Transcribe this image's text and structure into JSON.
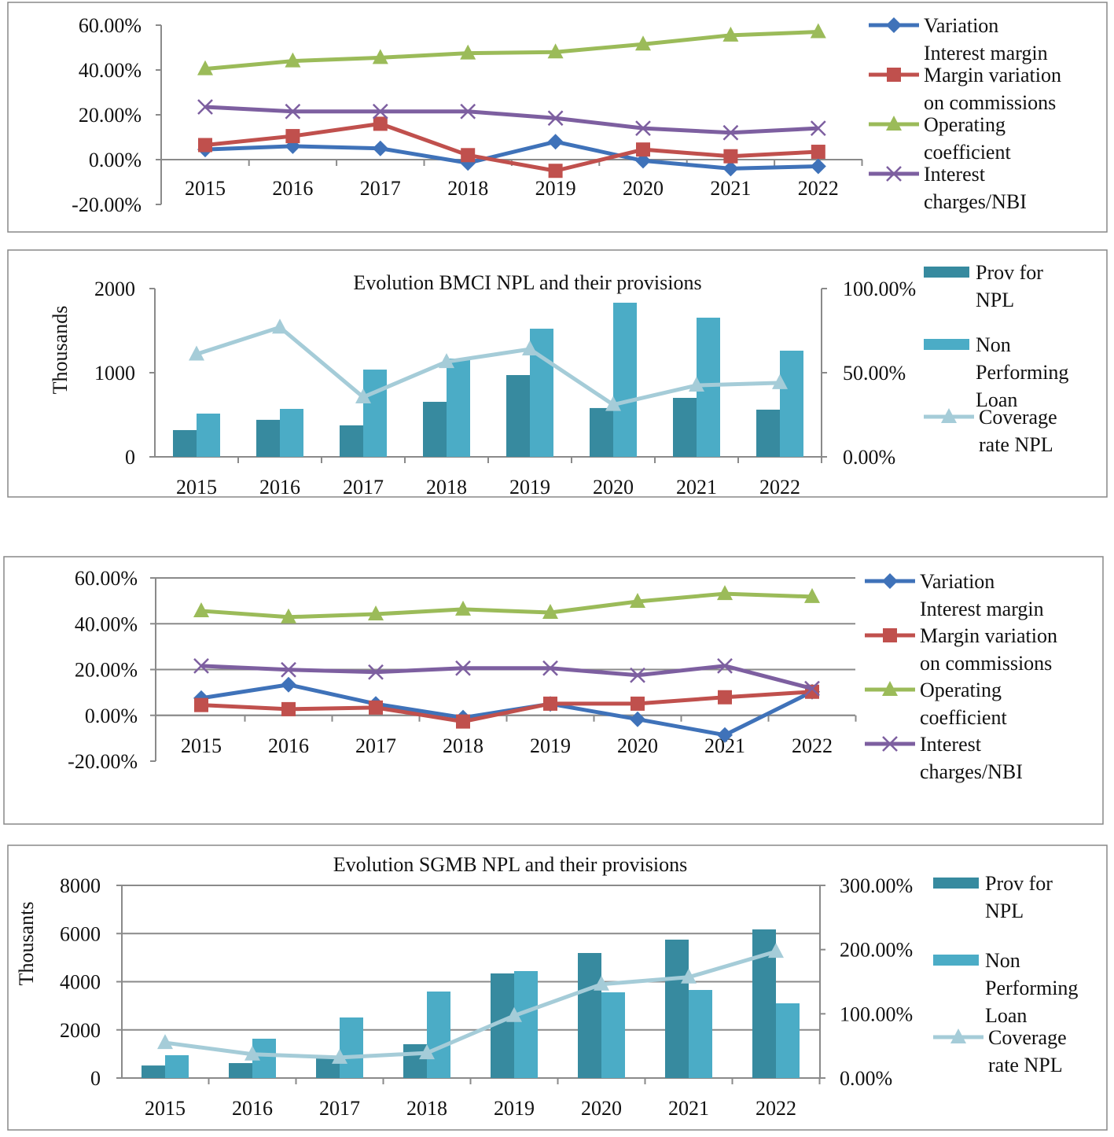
{
  "chart_data": [
    {
      "type": "line",
      "title": "",
      "categories": [
        "2015",
        "2016",
        "2017",
        "2018",
        "2019",
        "2020",
        "2021",
        "2022"
      ],
      "ylim": [
        -0.2,
        0.6
      ],
      "yticks": [
        "60.00%",
        "40.00%",
        "20.00%",
        "0.00%",
        "-20.00%"
      ],
      "ytick_values": [
        0.6,
        0.4,
        0.2,
        0,
        -0.2
      ],
      "grid": false,
      "legend": "right",
      "series": [
        {
          "name": "Variation Interest margin",
          "marker": "diamond",
          "color": "#3F72B9",
          "values": [
            0.045,
            0.06,
            0.05,
            -0.015,
            0.08,
            -0.005,
            -0.04,
            -0.03
          ]
        },
        {
          "name": "Margin variation on commissions",
          "marker": "square",
          "color": "#C0504D",
          "values": [
            0.065,
            0.105,
            0.16,
            0.02,
            -0.05,
            0.045,
            0.015,
            0.035
          ]
        },
        {
          "name": "Operating coefficient",
          "marker": "triangle",
          "color": "#9BBB59",
          "values": [
            0.405,
            0.44,
            0.455,
            0.475,
            0.48,
            0.515,
            0.555,
            0.57
          ]
        },
        {
          "name": "Interest charges/NBI",
          "marker": "x",
          "color": "#7D5FA0",
          "values": [
            0.235,
            0.215,
            0.215,
            0.215,
            0.185,
            0.14,
            0.12,
            0.14
          ]
        }
      ]
    },
    {
      "type": "bar",
      "title": "Evolution BMCI NPL and their provisions",
      "ylabel": "Thousands",
      "categories": [
        "2015",
        "2016",
        "2017",
        "2018",
        "2019",
        "2020",
        "2021",
        "2022"
      ],
      "ylim": [
        0,
        2000
      ],
      "yticks": [
        "2000",
        "1000",
        "0"
      ],
      "ytick_values": [
        2000,
        1000,
        0
      ],
      "y2lim": [
        0,
        1
      ],
      "y2ticks": [
        "100.00%",
        "50.00%",
        "0.00%"
      ],
      "y2tick_values": [
        1,
        0.5,
        0
      ],
      "grid": false,
      "legend": "right",
      "series": [
        {
          "name": "Prov for NPL",
          "kind": "bar",
          "color": "#378A9F",
          "values": [
            318,
            440,
            374,
            654,
            972,
            580,
            701,
            561
          ]
        },
        {
          "name": "Non Performing Loan",
          "kind": "bar",
          "color": "#4BACC6",
          "values": [
            514,
            570,
            1037,
            1168,
            1523,
            1832,
            1654,
            1262
          ]
        },
        {
          "name": "Coverage rate NPL",
          "kind": "line",
          "axis": "right",
          "marker": "triangle",
          "color": "#A5CCD8",
          "values": [
            0.61,
            0.77,
            0.355,
            0.565,
            0.64,
            0.31,
            0.425,
            0.44
          ]
        }
      ]
    },
    {
      "type": "line",
      "title": "",
      "categories": [
        "2015",
        "2016",
        "2017",
        "2018",
        "2019",
        "2020",
        "2021",
        "2022"
      ],
      "ylim": [
        -0.2,
        0.6
      ],
      "yticks": [
        "60.00%",
        "40.00%",
        "20.00%",
        "0.00%",
        "-20.00%"
      ],
      "ytick_values": [
        0.6,
        0.4,
        0.2,
        0,
        -0.2
      ],
      "grid": true,
      "legend": "right",
      "series": [
        {
          "name": "Variation Interest margin",
          "marker": "diamond",
          "color": "#3F72B9",
          "values": [
            0.075,
            0.134,
            0.05,
            -0.01,
            0.05,
            -0.017,
            -0.086,
            0.103
          ]
        },
        {
          "name": "Margin variation on commissions",
          "marker": "square",
          "color": "#C0504D",
          "values": [
            0.045,
            0.027,
            0.034,
            -0.027,
            0.051,
            0.051,
            0.079,
            0.103
          ]
        },
        {
          "name": "Operating coefficient",
          "marker": "triangle",
          "color": "#9BBB59",
          "values": [
            0.456,
            0.429,
            0.442,
            0.463,
            0.449,
            0.497,
            0.531,
            0.518
          ]
        },
        {
          "name": "Interest charges/NBI",
          "marker": "x",
          "color": "#7D5FA0",
          "values": [
            0.216,
            0.199,
            0.189,
            0.206,
            0.206,
            0.175,
            0.216,
            0.117
          ]
        }
      ]
    },
    {
      "type": "bar",
      "title": "Evolution SGMB NPL and their provisions",
      "ylabel": "Thousants",
      "categories": [
        "2015",
        "2016",
        "2017",
        "2018",
        "2019",
        "2020",
        "2021",
        "2022"
      ],
      "ylim": [
        0,
        8000
      ],
      "yticks": [
        "8000",
        "6000",
        "4000",
        "2000",
        "0"
      ],
      "ytick_values": [
        8000,
        6000,
        4000,
        2000,
        0
      ],
      "y2lim": [
        0,
        3
      ],
      "y2ticks": [
        "300.00%",
        "200.00%",
        "100.00%",
        "0.00%"
      ],
      "y2tick_values": [
        3,
        2,
        1,
        0
      ],
      "grid": true,
      "legend": "right",
      "series": [
        {
          "name": "Prov for NPL",
          "kind": "bar",
          "color": "#378A9F",
          "values": [
            520,
            620,
            816,
            1404,
            4343,
            5192,
            5747,
            6171
          ]
        },
        {
          "name": "Non Performing Loan",
          "kind": "bar",
          "color": "#4BACC6",
          "values": [
            947,
            1633,
            2514,
            3592,
            4441,
            3559,
            3657,
            3102
          ]
        },
        {
          "name": "Coverage rate NPL",
          "kind": "line",
          "axis": "right",
          "marker": "triangle",
          "color": "#A5CCD8",
          "values": [
            0.55,
            0.37,
            0.32,
            0.39,
            0.97,
            1.46,
            1.57,
            1.97
          ]
        }
      ]
    }
  ]
}
